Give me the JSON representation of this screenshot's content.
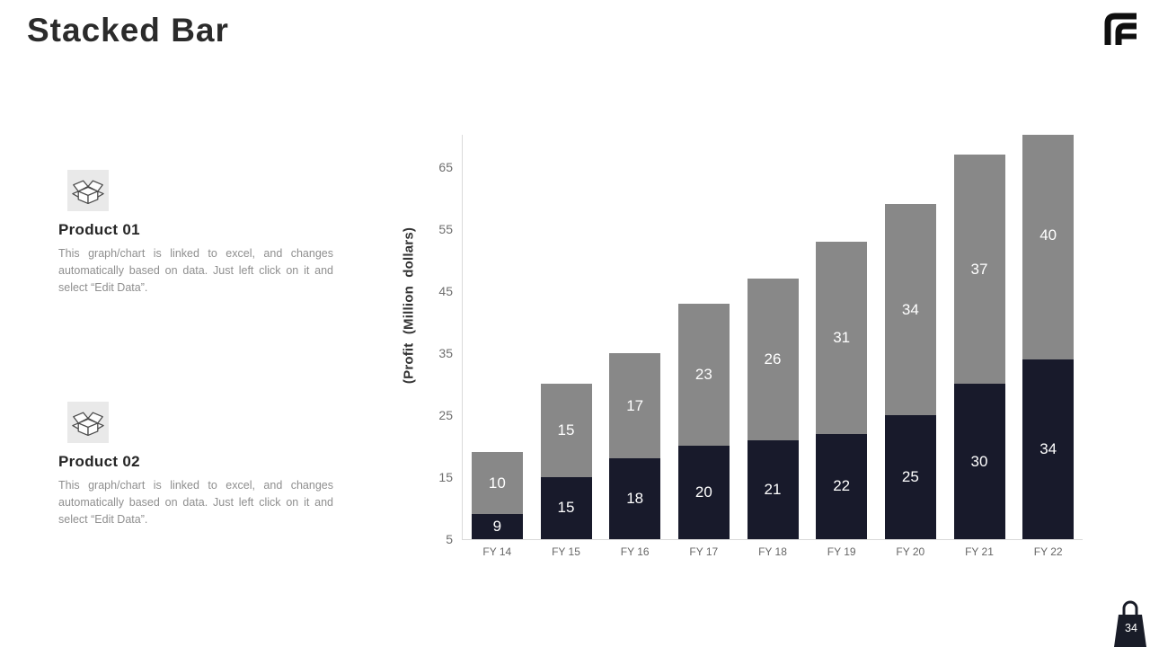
{
  "slide": {
    "title": "Stacked Bar",
    "page_number": "34",
    "background": "#ffffff"
  },
  "logo": {
    "glyph": "ff-monogram",
    "color": "#0f0f0f"
  },
  "products": [
    {
      "heading": "Product 01",
      "description": "This graph/chart is linked to excel, and changes automatically based on data. Just left click on it and select “Edit Data”.",
      "icon": "open-box-icon"
    },
    {
      "heading": "Product 02",
      "description": "This graph/chart is linked to excel, and changes automatically based on data. Just left click on it and select “Edit Data”.",
      "icon": "open-box-icon"
    }
  ],
  "chart_data": {
    "type": "bar",
    "stacked": true,
    "title": "",
    "categories": [
      "FY 14",
      "FY 15",
      "FY 16",
      "FY 17",
      "FY 18",
      "FY 19",
      "FY 20",
      "FY 21",
      "FY 22"
    ],
    "series": [
      {
        "name": "bottom-dark",
        "color": "#181a2b",
        "values": [
          9,
          15,
          18,
          20,
          21,
          22,
          25,
          30,
          34
        ]
      },
      {
        "name": "top-gray",
        "color": "#888888",
        "values": [
          10,
          15,
          17,
          23,
          26,
          31,
          34,
          37,
          40
        ]
      }
    ],
    "ylabel": "(Profit  (Million dollars)",
    "xlabel": "",
    "yticks": [
      5,
      15,
      25,
      35,
      45,
      55,
      65
    ],
    "ymin": 5,
    "ymax": 70.2,
    "grid": false,
    "legend": "none",
    "bar_label_color": "#ffffff",
    "axis_color": "#d9d9d9",
    "tick_label_color": "#6e6e6e"
  }
}
